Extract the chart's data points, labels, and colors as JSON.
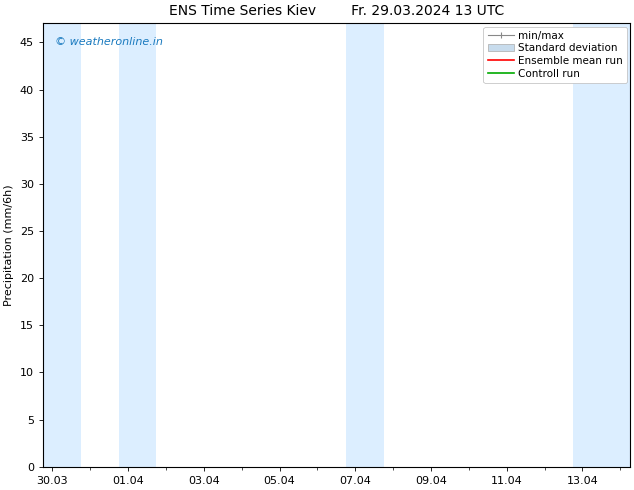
{
  "title_left": "ENS Time Series Kiev",
  "title_right": "Fr. 29.03.2024 13 UTC",
  "ylabel": "Precipitation (mm/6h)",
  "watermark": "© weatheronline.in",
  "watermark_color": "#1a7abf",
  "ylim": [
    0,
    47
  ],
  "yticks": [
    0,
    5,
    10,
    15,
    20,
    25,
    30,
    35,
    40,
    45
  ],
  "xtick_labels": [
    "30.03",
    "01.04",
    "03.04",
    "05.04",
    "07.04",
    "09.04",
    "11.04",
    "13.04"
  ],
  "xtick_positions": [
    0,
    2,
    4,
    6,
    8,
    10,
    12,
    14
  ],
  "xlim": [
    -0.25,
    15.25
  ],
  "shaded_bands": [
    {
      "xmin": -0.25,
      "xmax": 0.75,
      "color": "#dceeff"
    },
    {
      "xmin": 1.75,
      "xmax": 2.75,
      "color": "#dceeff"
    },
    {
      "xmin": 7.75,
      "xmax": 8.75,
      "color": "#dceeff"
    },
    {
      "xmin": 13.75,
      "xmax": 15.25,
      "color": "#dceeff"
    }
  ],
  "bg_color": "#ffffff",
  "legend_items": [
    {
      "label": "min/max",
      "color": "#999999",
      "type": "minmax"
    },
    {
      "label": "Standard deviation",
      "color": "#c8dced",
      "type": "fill"
    },
    {
      "label": "Ensemble mean run",
      "color": "#ff0000",
      "type": "line"
    },
    {
      "label": "Controll run",
      "color": "#00aa00",
      "type": "line"
    }
  ],
  "title_fontsize": 10,
  "ylabel_fontsize": 8,
  "tick_fontsize": 8,
  "legend_fontsize": 7.5
}
